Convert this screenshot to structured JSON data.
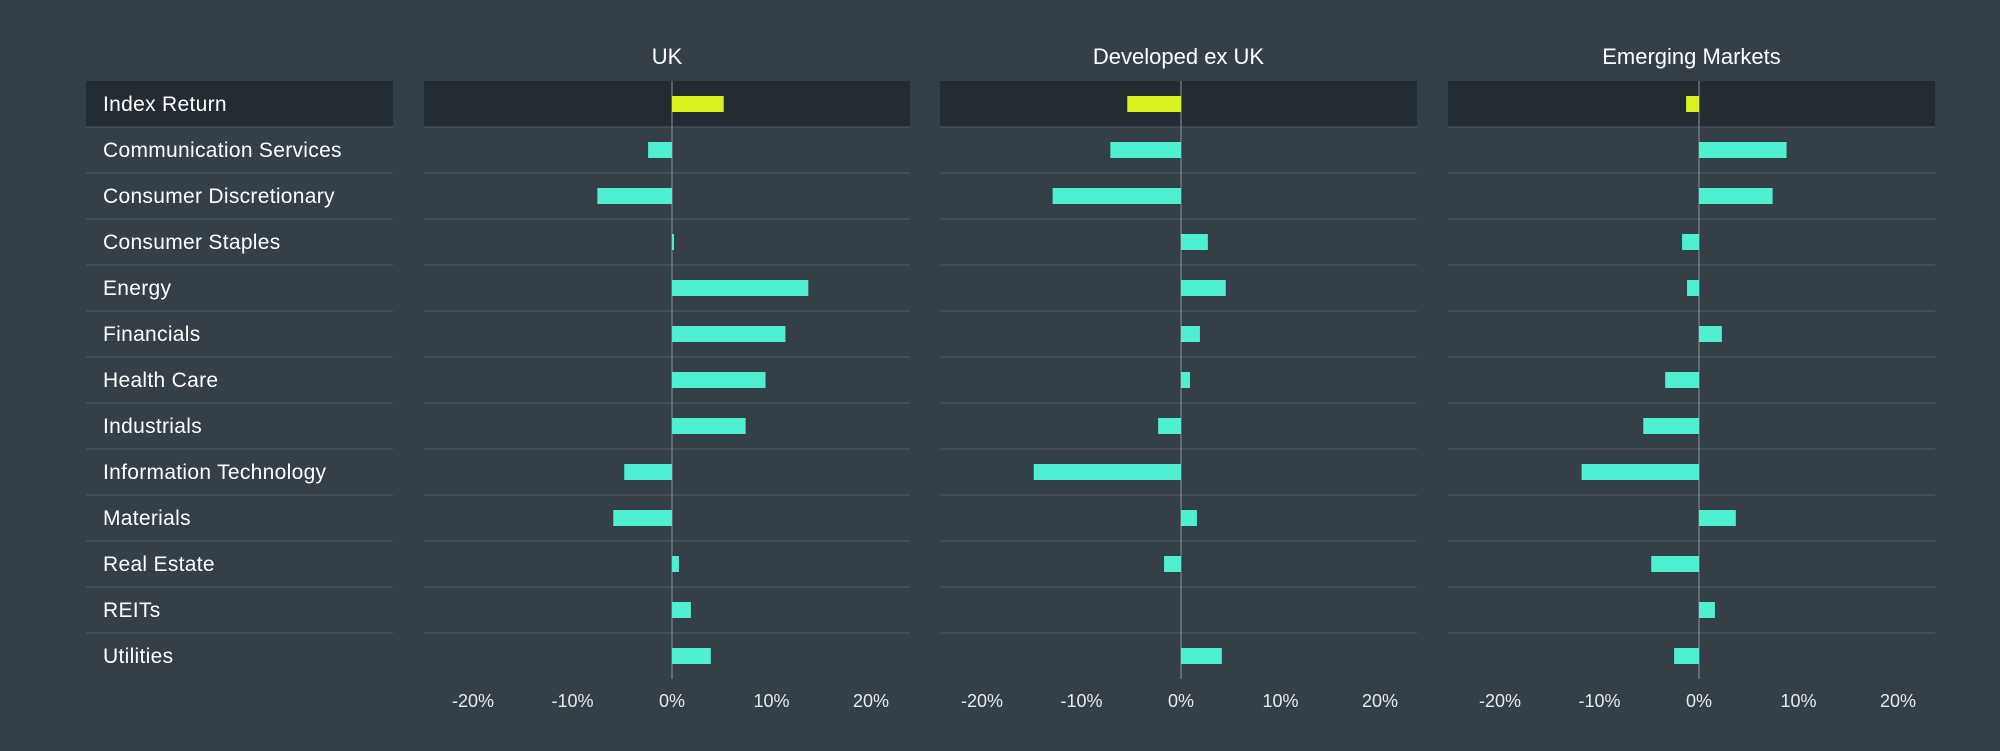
{
  "colors": {
    "background": "#343f48",
    "highlight_row": "#232c33",
    "separator": "#4f5c66",
    "zero_line": "#8a969e",
    "bar": "#4ff0d2",
    "index_bar": "#d7f21f"
  },
  "chart_data": {
    "type": "bar",
    "orientation": "horizontal",
    "categories": [
      "Index Return",
      "Communication Services",
      "Consumer Discretionary",
      "Consumer Staples",
      "Energy",
      "Financials",
      "Health Care",
      "Industrials",
      "Information Technology",
      "Materials",
      "Real Estate",
      "REITs",
      "Utilities"
    ],
    "xlim": [
      -25,
      25
    ],
    "x_ticks": [
      -20,
      -10,
      0,
      10,
      20
    ],
    "x_tick_labels": [
      "-20%",
      "-10%",
      "0%",
      "10%",
      "20%"
    ],
    "grid": false,
    "series": [
      {
        "name": "UK",
        "values": [
          5.2,
          -2.4,
          -7.5,
          0.2,
          13.7,
          11.4,
          9.4,
          7.4,
          -4.8,
          -5.9,
          0.7,
          1.9,
          3.9
        ]
      },
      {
        "name": "Developed ex UK",
        "values": [
          -5.4,
          -7.1,
          -12.9,
          2.7,
          4.5,
          1.9,
          0.9,
          -2.3,
          -14.8,
          1.6,
          -1.7,
          0.0,
          4.1
        ]
      },
      {
        "name": "Emerging Markets",
        "values": [
          -1.3,
          8.8,
          7.4,
          -1.7,
          -1.2,
          2.3,
          -3.4,
          -5.6,
          -11.8,
          3.7,
          -4.8,
          1.6,
          -2.5
        ]
      }
    ]
  }
}
